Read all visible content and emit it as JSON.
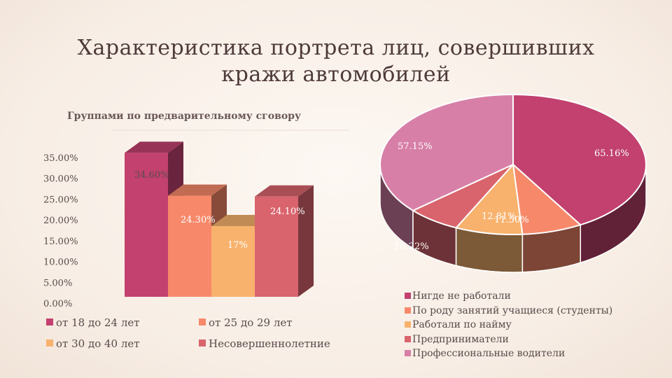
{
  "slide": {
    "title_line1": "Характеристика портрета лиц, совершивших",
    "title_line2": "кражи автомобилей"
  },
  "chart_data": [
    {
      "type": "bar",
      "title": "Группами по предварительному сговору",
      "categories": [
        "от 18 до 24 лет",
        "от 25 до 29 лет",
        "от 30 до 40 лет",
        "Несовершеннолетние"
      ],
      "values": [
        34.6,
        24.3,
        17,
        24.1
      ],
      "value_labels": [
        "34.60%",
        "24.30%",
        "17%",
        "24.10%"
      ],
      "colors": [
        "#c2416e",
        "#f7896a",
        "#f8b26d",
        "#d9646d"
      ],
      "yticks": [
        "0.00%",
        "5.00%",
        "10.00%",
        "15.00%",
        "20.00%",
        "25.00%",
        "30.00%",
        "35.00%"
      ],
      "ylim": [
        0,
        35
      ],
      "legend_position": "bottom",
      "style": "3d"
    },
    {
      "type": "pie",
      "labels": [
        "Нигде не работали",
        "По роду занятий учащиеся (студенты)",
        "Работали по найму",
        "Предприниматели",
        "Профессиональные водители"
      ],
      "values": [
        65.16,
        11.5,
        12.81,
        10.22,
        57.15
      ],
      "value_labels": [
        "65.16%",
        "11.50%",
        "12.81%",
        "10.22%",
        "57.15%"
      ],
      "colors": [
        "#c2416e",
        "#f7896a",
        "#f8b26d",
        "#d9646d",
        "#d77fa7"
      ],
      "legend_position": "bottom",
      "style": "3d"
    }
  ]
}
